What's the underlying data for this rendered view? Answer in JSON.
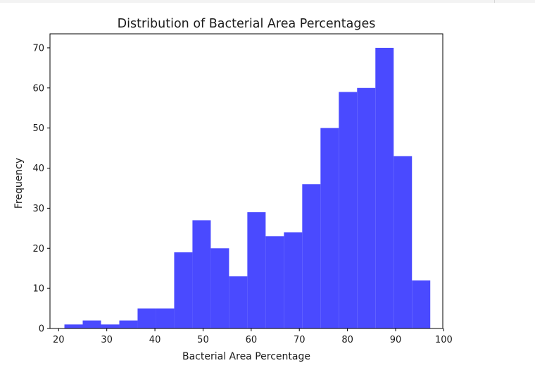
{
  "chart_data": {
    "type": "bar",
    "subtype": "histogram",
    "title": "Distribution of Bacterial Area Percentages",
    "xlabel": "Bacterial Area Percentage",
    "ylabel": "Frequency",
    "xlim": [
      18.2,
      99.8
    ],
    "ylim": [
      0,
      73.5
    ],
    "xticks": [
      20,
      30,
      40,
      50,
      60,
      70,
      80,
      90,
      100
    ],
    "yticks": [
      0,
      10,
      20,
      30,
      40,
      50,
      60,
      70
    ],
    "grid": false,
    "bar_color": "#4a4aff",
    "bins": [
      {
        "x0": 21.2,
        "x1": 25.0,
        "count": 1
      },
      {
        "x0": 25.0,
        "x1": 28.8,
        "count": 2
      },
      {
        "x0": 28.8,
        "x1": 32.6,
        "count": 1
      },
      {
        "x0": 32.6,
        "x1": 36.4,
        "count": 2
      },
      {
        "x0": 36.4,
        "x1": 40.2,
        "count": 5
      },
      {
        "x0": 40.2,
        "x1": 44.0,
        "count": 5
      },
      {
        "x0": 44.0,
        "x1": 47.8,
        "count": 19
      },
      {
        "x0": 47.8,
        "x1": 51.6,
        "count": 27
      },
      {
        "x0": 51.6,
        "x1": 55.4,
        "count": 20
      },
      {
        "x0": 55.4,
        "x1": 59.2,
        "count": 13
      },
      {
        "x0": 59.2,
        "x1": 63.0,
        "count": 29
      },
      {
        "x0": 63.0,
        "x1": 66.8,
        "count": 23
      },
      {
        "x0": 66.8,
        "x1": 70.6,
        "count": 24
      },
      {
        "x0": 70.6,
        "x1": 74.4,
        "count": 36
      },
      {
        "x0": 74.4,
        "x1": 78.2,
        "count": 50
      },
      {
        "x0": 78.2,
        "x1": 82.0,
        "count": 59
      },
      {
        "x0": 82.0,
        "x1": 85.8,
        "count": 60
      },
      {
        "x0": 85.8,
        "x1": 89.6,
        "count": 70
      },
      {
        "x0": 89.6,
        "x1": 93.4,
        "count": 43
      },
      {
        "x0": 93.4,
        "x1": 97.2,
        "count": 12
      }
    ]
  }
}
